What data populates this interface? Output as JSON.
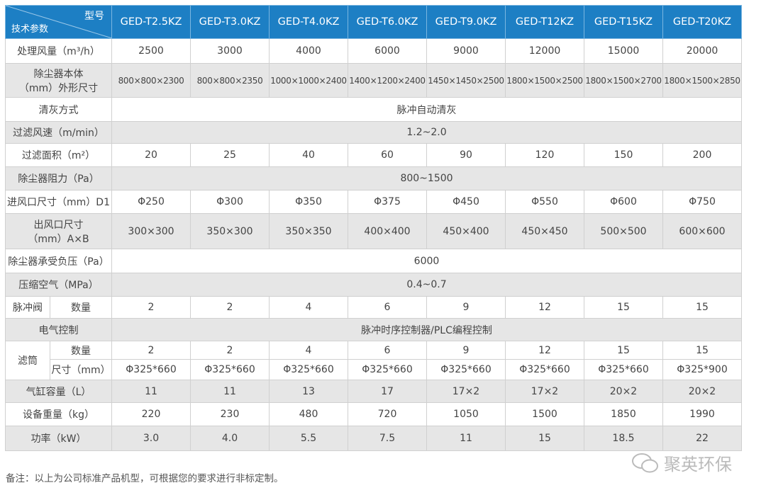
{
  "header": {
    "corner_top": "型号",
    "corner_bottom": "技术参数",
    "models": [
      "GED-T2.5KZ",
      "GED-T3.0KZ",
      "GED-T4.0KZ",
      "GED-T6.0KZ",
      "GED-T9.0KZ",
      "GED-T12KZ",
      "GED-T15KZ",
      "GED-T20KZ"
    ]
  },
  "rows": {
    "airflow": {
      "label": "处理风量（m³/h）",
      "values": [
        "2500",
        "3000",
        "4000",
        "6000",
        "9000",
        "12000",
        "15000",
        "20000"
      ]
    },
    "size": {
      "label1": "除尘器本体",
      "label2": "（mm）外形尺寸",
      "values": [
        "800×800×2300",
        "800×800×2350",
        "1000×1000×2400",
        "1400×1200×2400",
        "1450×1450×2500",
        "1800×1500×2500",
        "1800×1500×2700",
        "1800×1500×2850"
      ]
    },
    "cleaning": {
      "label": "清灰方式",
      "value": "脉冲自动清灰"
    },
    "filter_speed": {
      "label": "过滤风速（m/min）",
      "value": "1.2~2.0"
    },
    "filter_area": {
      "label": "过滤面积（m²）",
      "values": [
        "20",
        "25",
        "40",
        "60",
        "90",
        "120",
        "150",
        "200"
      ]
    },
    "resistance": {
      "label": "除尘器阻力（Pa）",
      "value": "800~1500"
    },
    "inlet": {
      "label": "进风口尺寸（mm）D1",
      "values": [
        "Φ250",
        "Φ300",
        "Φ350",
        "Φ375",
        "Φ450",
        "Φ550",
        "Φ600",
        "Φ750"
      ]
    },
    "outlet": {
      "label1": "出风口尺寸",
      "label2": "（mm）A×B",
      "values": [
        "300×300",
        "350×300",
        "350×350",
        "400×400",
        "450×400",
        "450×450",
        "500×500",
        "600×600"
      ]
    },
    "pressure": {
      "label": "除尘器承受负压（Pa）",
      "value": "6000"
    },
    "air": {
      "label": "压缩空气（MPa）",
      "value": "0.4~0.7"
    },
    "valve": {
      "label": "脉冲阀",
      "sub": "数量",
      "values": [
        "2",
        "2",
        "4",
        "6",
        "9",
        "12",
        "15",
        "15"
      ]
    },
    "electric": {
      "label": "电气控制",
      "value": "脉冲时序控制器/PLC编程控制"
    },
    "cartridge": {
      "label": "滤筒",
      "sub1": "数量",
      "values1": [
        "2",
        "2",
        "4",
        "6",
        "9",
        "12",
        "15",
        "15"
      ],
      "sub2": "尺寸（mm）",
      "values2": [
        "Φ325*660",
        "Φ325*660",
        "Φ325*660",
        "Φ325*660",
        "Φ325*660",
        "Φ325*660",
        "Φ325*660",
        "Φ325*900"
      ]
    },
    "cylinder": {
      "label": "气缸容量（L）",
      "values": [
        "11",
        "11",
        "13",
        "17",
        "17×2",
        "17×2",
        "20×2",
        "20×2"
      ]
    },
    "weight": {
      "label": "设备重量（kg）",
      "values": [
        "220",
        "230",
        "480",
        "720",
        "1050",
        "1500",
        "1850",
        "1990"
      ]
    },
    "power": {
      "label": "功率（kW）",
      "values": [
        "3.0",
        "4.0",
        "5.5",
        "7.5",
        "11",
        "15",
        "18.5",
        "22"
      ]
    }
  },
  "note": "备注：以上为公司标准产品机型，可根据您的要求进行非标定制。",
  "watermark": "聚英环保"
}
